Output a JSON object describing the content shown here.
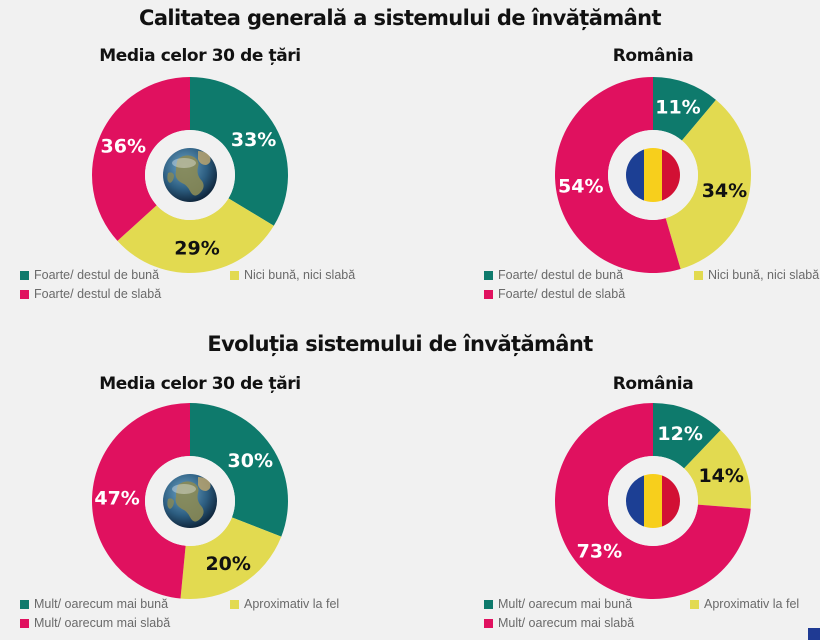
{
  "colors": {
    "good": "#0e7a6c",
    "same": "#e2da50",
    "bad": "#e0115f",
    "flag_blue": "#1c3f94",
    "flag_yellow": "#f7cf1c",
    "flag_red": "#d21034"
  },
  "icons": {
    "world": "globe-icon",
    "romania": "romania-flag-icon"
  },
  "sections": [
    {
      "title": "Calitatea generală a sistemului de învățământ",
      "legend": [
        "Foarte/ destul de bună",
        "Nici bună, nici slabă",
        "Foarte/ destul de slabă"
      ]
    },
    {
      "title": "Evoluția sistemului de învățământ",
      "legend": [
        "Mult/ oarecum mai bună",
        "Aproximativ la fel",
        "Mult/ oarecum mai slabă"
      ]
    }
  ],
  "chart_data": [
    {
      "type": "pie",
      "title": "Media celor 30 de țări",
      "categories": [
        "Foarte/ destul de bună",
        "Nici bună, nici slabă",
        "Foarte/ destul de slabă"
      ],
      "values": [
        33,
        29,
        36
      ],
      "labels": [
        "33%",
        "29%",
        "36%"
      ],
      "center_icon": "globe-icon"
    },
    {
      "type": "pie",
      "title": "România",
      "categories": [
        "Foarte/ destul de bună",
        "Nici bună, nici slabă",
        "Foarte/ destul de slabă"
      ],
      "values": [
        11,
        34,
        54
      ],
      "labels": [
        "11%",
        "34%",
        "54%"
      ],
      "center_icon": "romania-flag-icon"
    },
    {
      "type": "pie",
      "title": "Media celor 30 de țări",
      "categories": [
        "Mult/ oarecum mai bună",
        "Aproximativ la fel",
        "Mult/ oarecum mai slabă"
      ],
      "values": [
        30,
        20,
        47
      ],
      "labels": [
        "30%",
        "20%",
        "47%"
      ],
      "center_icon": "globe-icon"
    },
    {
      "type": "pie",
      "title": "România",
      "categories": [
        "Mult/ oarecum mai bună",
        "Aproximativ la fel",
        "Mult/ oarecum mai slabă"
      ],
      "values": [
        12,
        14,
        73
      ],
      "labels": [
        "12%",
        "14%",
        "73%"
      ],
      "center_icon": "romania-flag-icon"
    }
  ]
}
